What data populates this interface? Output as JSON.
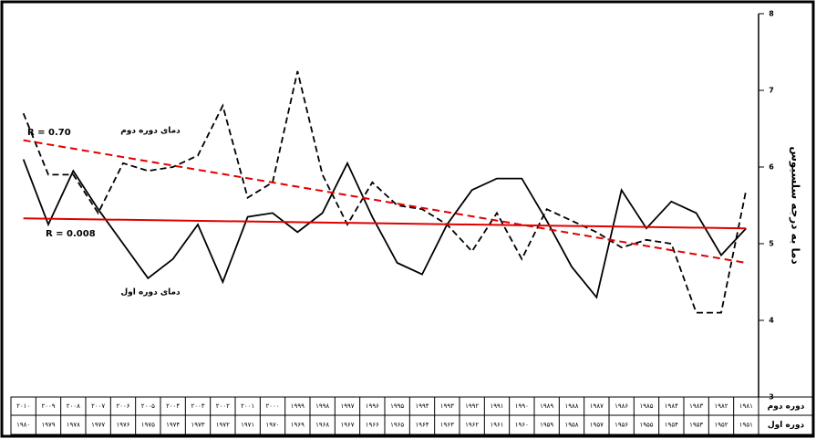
{
  "chart_data": {
    "type": "line",
    "y_label": "دما به درجه سلسیوس",
    "categories": [
      "۲۰۱۰",
      "۲۰۰۹",
      "۲۰۰۸",
      "۲۰۰۷",
      "۲۰۰۶",
      "۲۰۰۵",
      "۲۰۰۴",
      "۲۰۰۳",
      "۲۰۰۲",
      "۲۰۰۱",
      "۲۰۰۰",
      "۱۹۹۹",
      "۱۹۹۸",
      "۱۹۹۷",
      "۱۹۹۶",
      "۱۹۹۵",
      "۱۹۹۴",
      "۱۹۹۳",
      "۱۹۹۲",
      "۱۹۹۱",
      "۱۹۹۰",
      "۱۹۸۹",
      "۱۹۸۸",
      "۱۹۸۷",
      "۱۹۸۶",
      "۱۹۸۵",
      "۱۹۸۴",
      "۱۹۸۳",
      "۱۹۸۲",
      "۱۹۸۱"
    ],
    "categories_2": [
      "۱۹۸۰",
      "۱۹۷۹",
      "۱۹۷۸",
      "۱۹۷۷",
      "۱۹۷۶",
      "۱۹۷۵",
      "۱۹۷۴",
      "۱۹۷۳",
      "۱۹۷۲",
      "۱۹۷۱",
      "۱۹۷۰",
      "۱۹۶۹",
      "۱۹۶۸",
      "۱۹۶۷",
      "۱۹۶۶",
      "۱۹۶۵",
      "۱۹۶۴",
      "۱۹۶۳",
      "۱۹۶۲",
      "۱۹۶۱",
      "۱۹۶۰",
      "۱۹۵۹",
      "۱۹۵۸",
      "۱۹۵۷",
      "۱۹۵۶",
      "۱۹۵۵",
      "۱۹۵۴",
      "۱۹۵۳",
      "۱۹۵۲",
      "۱۹۵۱"
    ],
    "row_labels": [
      "دوره دوم",
      "دوره اول"
    ],
    "series": [
      {
        "name": "دمای دوره دوم",
        "color": "#000000",
        "dash": true,
        "values": [
          6.7,
          5.9,
          5.9,
          5.4,
          6.05,
          5.95,
          6.0,
          6.15,
          6.8,
          5.6,
          5.8,
          7.25,
          5.9,
          5.25,
          5.8,
          5.5,
          5.45,
          5.25,
          4.9,
          5.4,
          4.8,
          5.45,
          5.3,
          5.15,
          4.95,
          5.05,
          5.0,
          4.1,
          4.1,
          5.7
        ]
      },
      {
        "name": "دمای دوره اول",
        "color": "#000000",
        "dash": false,
        "values": [
          6.1,
          5.25,
          5.95,
          5.45,
          5.0,
          4.55,
          4.8,
          5.25,
          4.5,
          5.35,
          5.4,
          5.15,
          5.4,
          6.05,
          5.35,
          4.75,
          4.6,
          5.25,
          5.7,
          5.85,
          5.85,
          5.3,
          4.7,
          4.3,
          5.7,
          5.2,
          5.55,
          5.4,
          4.85,
          5.2
        ]
      }
    ],
    "trend_lines": [
      {
        "color": "#e00000",
        "dash": true,
        "values": [
          6.35,
          4.75
        ]
      },
      {
        "color": "#e00000",
        "dash": false,
        "values": [
          5.33,
          5.2
        ]
      }
    ],
    "annotations": [
      "R = 0.70",
      "R = 0.008"
    ],
    "ylim": [
      3,
      8
    ],
    "yticks": [
      3,
      4,
      5,
      6,
      7,
      8
    ]
  }
}
